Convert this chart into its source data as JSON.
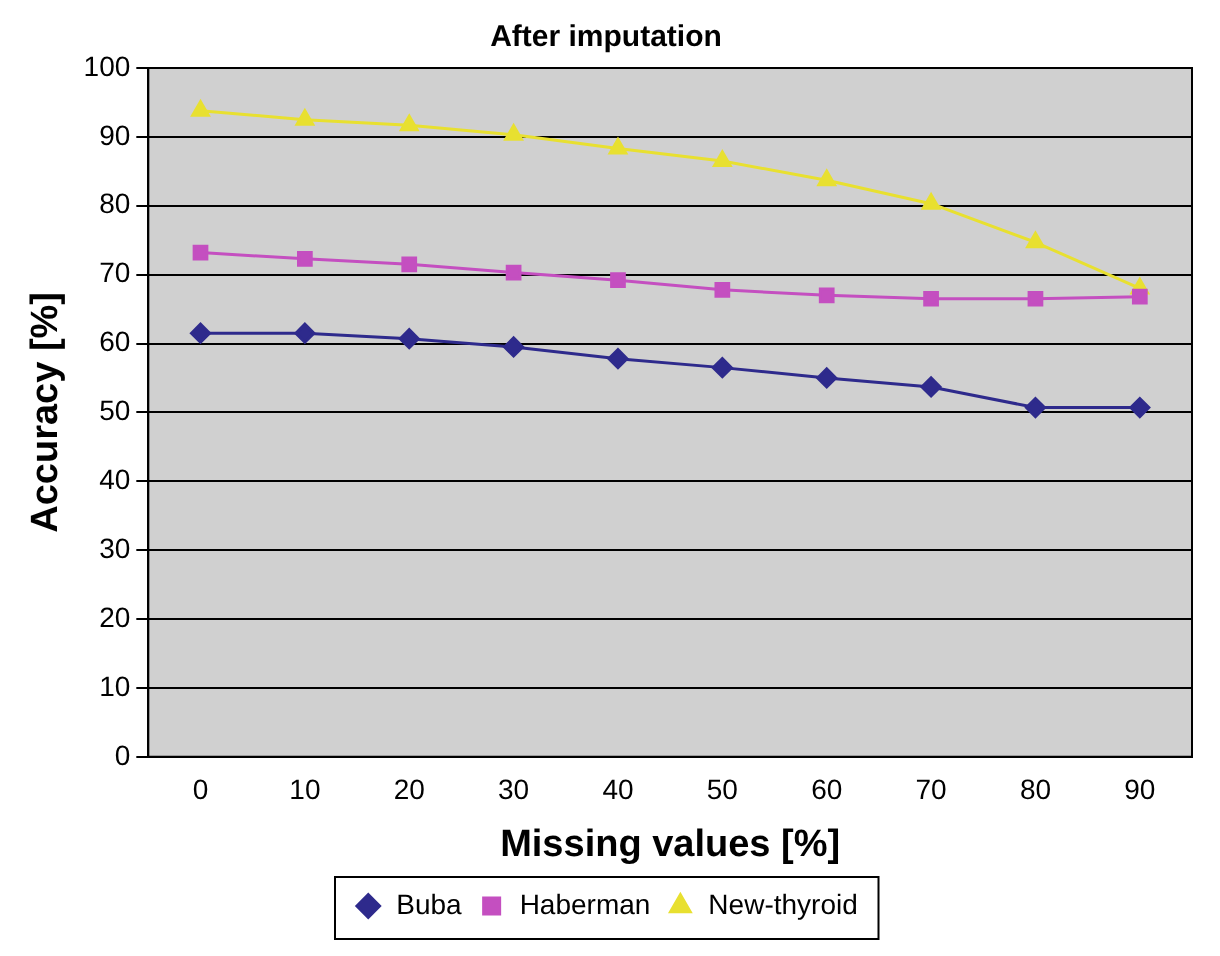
{
  "chart_data": {
    "type": "line",
    "title": "After imputation",
    "xlabel": "Missing values [%]",
    "ylabel": "Accuracy [%]",
    "categories": [
      "0",
      "10",
      "20",
      "30",
      "40",
      "50",
      "60",
      "70",
      "80",
      "90"
    ],
    "series": [
      {
        "name": "Buba",
        "color": "#2e2a8c",
        "marker": "diamond",
        "values": [
          61.5,
          61.5,
          60.7,
          59.5,
          57.8,
          56.5,
          55,
          53.7,
          50.7,
          50.7
        ]
      },
      {
        "name": "Haberman",
        "color": "#c44fc0",
        "marker": "square",
        "values": [
          73.2,
          72.3,
          71.5,
          70.3,
          69.2,
          67.8,
          67,
          66.5,
          66.5,
          66.8
        ]
      },
      {
        "name": "New-thyroid",
        "color": "#e8e030",
        "marker": "triangle",
        "values": [
          93.8,
          92.5,
          91.7,
          90.3,
          88.3,
          86.5,
          83.7,
          80.3,
          74.7,
          68
        ]
      }
    ],
    "ylim": [
      0,
      100
    ],
    "yticks": [
      0,
      10,
      20,
      30,
      40,
      50,
      60,
      70,
      80,
      90,
      100
    ],
    "grid": "y",
    "legend": "bottom",
    "line_style": "solid"
  }
}
